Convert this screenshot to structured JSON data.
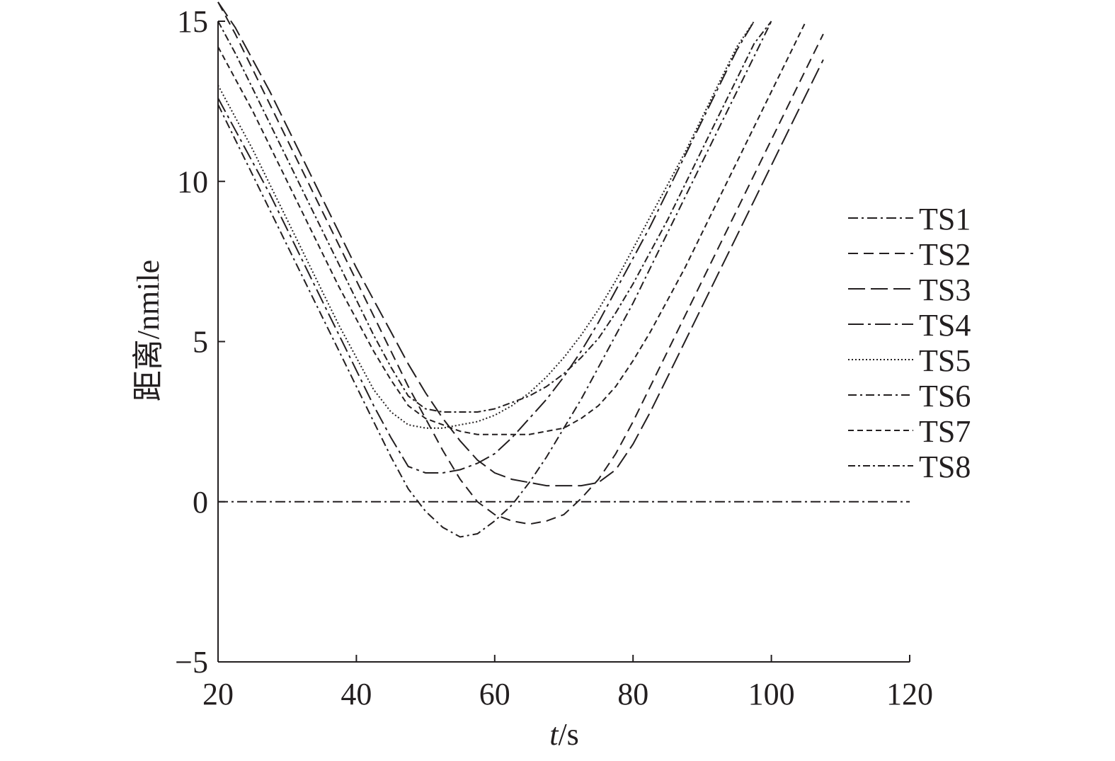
{
  "chart_data": {
    "type": "line",
    "title": "",
    "xlabel_italic": "t",
    "xlabel_unit": "/s",
    "ylabel": "距离/nmile",
    "xlim": [
      20,
      120
    ],
    "ylim": [
      -5,
      15
    ],
    "xticks": [
      20,
      40,
      60,
      80,
      100,
      120
    ],
    "yticks": [
      -5,
      0,
      5,
      10,
      15
    ],
    "xtick_labels": [
      "20",
      "40",
      "60",
      "80",
      "100",
      "120"
    ],
    "ytick_labels": [
      "−5",
      "0",
      "5",
      "10",
      "15"
    ],
    "grid": false,
    "legend_position": "right",
    "x": [
      20,
      22.5,
      25,
      27.5,
      30,
      32.5,
      35,
      37.5,
      40,
      42.5,
      45,
      47.5,
      50,
      52.5,
      55,
      57.5,
      60,
      62.5,
      65,
      67.5,
      70,
      72.5,
      75,
      77.5,
      80,
      82.5,
      85,
      87.5,
      90,
      92.5,
      95,
      97.5,
      100,
      102.5,
      105,
      107.5,
      110,
      112.5,
      115,
      117.5,
      120
    ],
    "series": [
      {
        "name": "TS1",
        "dash": "14,5,3,5",
        "values": [
          0,
          0,
          0,
          0,
          0,
          0,
          0,
          0,
          0,
          0,
          0,
          0,
          0,
          0,
          0,
          0,
          0,
          0,
          0,
          0,
          0,
          0,
          0,
          0,
          0,
          0,
          0,
          0,
          0,
          0,
          0,
          0,
          0,
          0,
          0,
          0,
          0,
          0,
          0,
          0,
          0
        ]
      },
      {
        "name": "TS2",
        "dash": "14,8",
        "values": [
          15.6,
          14.6,
          13.5,
          12.4,
          11.3,
          10.2,
          9.1,
          8.0,
          6.9,
          5.8,
          4.7,
          3.6,
          2.6,
          1.6,
          0.7,
          0.0,
          -0.4,
          -0.6,
          -0.7,
          -0.6,
          -0.4,
          0.1,
          0.7,
          1.5,
          2.5,
          3.6,
          4.7,
          5.8,
          6.9,
          8.0,
          9.1,
          10.2,
          11.3,
          12.4,
          13.5,
          14.6,
          null,
          null,
          null,
          null,
          null
        ]
      },
      {
        "name": "TS3",
        "dash": "24,8",
        "values": [
          15.6,
          14.8,
          13.8,
          12.8,
          11.7,
          10.6,
          9.5,
          8.4,
          7.3,
          6.3,
          5.3,
          4.3,
          3.4,
          2.6,
          1.9,
          1.3,
          0.9,
          0.7,
          0.6,
          0.5,
          0.5,
          0.5,
          0.6,
          1.0,
          1.8,
          2.8,
          3.9,
          5.0,
          6.1,
          7.2,
          8.3,
          9.4,
          10.5,
          11.6,
          12.7,
          13.8,
          null,
          null,
          null,
          null,
          null
        ]
      },
      {
        "name": "TS4",
        "dash": "22,6,4,6",
        "values": [
          12.6,
          11.6,
          10.6,
          9.6,
          8.5,
          7.4,
          6.3,
          5.2,
          4.1,
          3.0,
          2.0,
          1.1,
          0.9,
          0.9,
          1.0,
          1.2,
          1.5,
          2.0,
          2.6,
          3.2,
          3.9,
          4.7,
          5.6,
          6.6,
          7.6,
          8.6,
          9.7,
          10.8,
          11.9,
          13.0,
          14.1,
          15.0,
          null,
          null,
          null,
          null,
          null,
          null,
          null,
          null,
          null
        ]
      },
      {
        "name": "TS5",
        "dash": "2,3",
        "values": [
          13.0,
          12.0,
          11.0,
          9.9,
          8.8,
          7.7,
          6.6,
          5.5,
          4.5,
          3.5,
          2.8,
          2.4,
          2.3,
          2.3,
          2.4,
          2.5,
          2.7,
          3.0,
          3.4,
          3.9,
          4.5,
          5.2,
          6.0,
          6.9,
          7.9,
          8.9,
          9.9,
          10.9,
          12.0,
          13.1,
          14.2,
          15.0,
          null,
          null,
          null,
          null,
          null,
          null,
          null,
          null,
          null
        ]
      },
      {
        "name": "TS6",
        "dash": "12,5,3,5",
        "values": [
          12.4,
          11.3,
          10.2,
          9.1,
          8.0,
          6.9,
          5.8,
          4.7,
          3.6,
          2.5,
          1.4,
          0.4,
          -0.3,
          -0.8,
          -1.1,
          -1.0,
          -0.6,
          -0.1,
          0.6,
          1.4,
          2.3,
          3.2,
          4.2,
          5.2,
          6.2,
          7.3,
          8.4,
          9.5,
          10.6,
          11.7,
          12.8,
          13.9,
          15.0,
          null,
          null,
          null,
          null,
          null,
          null,
          null,
          null
        ]
      },
      {
        "name": "TS7",
        "dash": "8,5",
        "values": [
          14.2,
          13.2,
          12.2,
          11.1,
          10.0,
          8.9,
          7.8,
          6.7,
          5.7,
          4.7,
          3.8,
          3.0,
          2.6,
          2.4,
          2.2,
          2.1,
          2.1,
          2.1,
          2.1,
          2.2,
          2.3,
          2.6,
          3.0,
          3.6,
          4.4,
          5.3,
          6.3,
          7.3,
          8.4,
          9.5,
          10.6,
          11.7,
          12.8,
          13.9,
          15.0,
          null,
          null,
          null,
          null,
          null,
          null
        ]
      },
      {
        "name": "TS8",
        "dash": "10,4,3,4",
        "values": [
          15.0,
          14.0,
          12.9,
          11.8,
          10.7,
          9.6,
          8.5,
          7.4,
          6.3,
          5.2,
          4.2,
          3.3,
          2.9,
          2.8,
          2.8,
          2.8,
          2.9,
          3.1,
          3.3,
          3.6,
          4.0,
          4.5,
          5.1,
          5.9,
          6.8,
          7.8,
          8.8,
          9.9,
          11.0,
          12.1,
          13.2,
          14.3,
          15.0,
          null,
          null,
          null,
          null,
          null,
          null,
          null,
          null
        ]
      }
    ]
  }
}
